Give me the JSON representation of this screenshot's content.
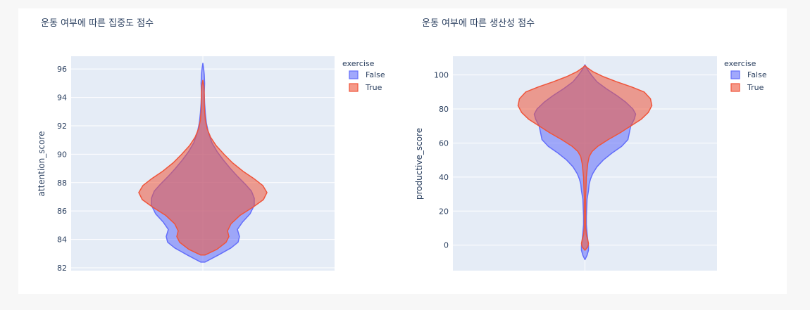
{
  "chart_data": [
    {
      "type": "violin",
      "title": "운동 여부에 따른 집중도 점수",
      "xlabel": "",
      "ylabel": "attention_score",
      "ylim": [
        81.8,
        96.9
      ],
      "yticks": [
        82,
        84,
        86,
        88,
        90,
        92,
        94,
        96
      ],
      "legend": {
        "title": "exercise",
        "placement": "top-right"
      },
      "series": [
        {
          "name": "False",
          "color": "#636efa",
          "density": [
            [
              82.4,
              0.03
            ],
            [
              82.9,
              0.22
            ],
            [
              83.4,
              0.4
            ],
            [
              83.8,
              0.5
            ],
            [
              84.2,
              0.52
            ],
            [
              84.7,
              0.49
            ],
            [
              85.2,
              0.56
            ],
            [
              85.8,
              0.67
            ],
            [
              86.4,
              0.73
            ],
            [
              86.9,
              0.73
            ],
            [
              87.4,
              0.69
            ],
            [
              87.9,
              0.6
            ],
            [
              88.4,
              0.5
            ],
            [
              89.0,
              0.39
            ],
            [
              89.6,
              0.29
            ],
            [
              90.2,
              0.2
            ],
            [
              90.8,
              0.13
            ],
            [
              91.5,
              0.08
            ],
            [
              92.2,
              0.05
            ],
            [
              92.9,
              0.035
            ],
            [
              93.6,
              0.025
            ],
            [
              94.3,
              0.02
            ],
            [
              95.0,
              0.025
            ],
            [
              95.6,
              0.02
            ],
            [
              96.0,
              0.012
            ],
            [
              96.4,
              0.0
            ]
          ]
        },
        {
          "name": "True",
          "color": "#ef553b",
          "density": [
            [
              82.9,
              0.03
            ],
            [
              83.3,
              0.2
            ],
            [
              83.8,
              0.33
            ],
            [
              84.2,
              0.37
            ],
            [
              84.6,
              0.35
            ],
            [
              85.1,
              0.4
            ],
            [
              85.7,
              0.53
            ],
            [
              86.3,
              0.72
            ],
            [
              86.8,
              0.86
            ],
            [
              87.3,
              0.91
            ],
            [
              87.8,
              0.85
            ],
            [
              88.3,
              0.72
            ],
            [
              88.8,
              0.57
            ],
            [
              89.4,
              0.42
            ],
            [
              90.0,
              0.3
            ],
            [
              90.6,
              0.19
            ],
            [
              91.2,
              0.11
            ],
            [
              91.8,
              0.06
            ],
            [
              92.4,
              0.035
            ],
            [
              93.0,
              0.025
            ],
            [
              93.6,
              0.02
            ],
            [
              94.2,
              0.02
            ],
            [
              94.8,
              0.015
            ],
            [
              95.2,
              0.0
            ]
          ]
        }
      ]
    },
    {
      "type": "violin",
      "title": "운동 여부에 따른 생산성 점수",
      "xlabel": "",
      "ylabel": "productive_score",
      "ylim": [
        -15,
        111
      ],
      "yticks": [
        0,
        20,
        40,
        60,
        80,
        100
      ],
      "legend": {
        "title": "exercise",
        "placement": "top-right"
      },
      "series": [
        {
          "name": "False",
          "color": "#636efa",
          "density": [
            [
              -8.5,
              0.0
            ],
            [
              -6,
              0.03
            ],
            [
              -3,
              0.05
            ],
            [
              0,
              0.05
            ],
            [
              3,
              0.04
            ],
            [
              7,
              0.03
            ],
            [
              12,
              0.02
            ],
            [
              17,
              0.02
            ],
            [
              22,
              0.025
            ],
            [
              27,
              0.03
            ],
            [
              32,
              0.05
            ],
            [
              36,
              0.06
            ],
            [
              39,
              0.08
            ],
            [
              42,
              0.11
            ],
            [
              46,
              0.17
            ],
            [
              50,
              0.26
            ],
            [
              54,
              0.38
            ],
            [
              58,
              0.52
            ],
            [
              62,
              0.61
            ],
            [
              66,
              0.63
            ],
            [
              70,
              0.65
            ],
            [
              74,
              0.7
            ],
            [
              77,
              0.72
            ],
            [
              80,
              0.68
            ],
            [
              84,
              0.58
            ],
            [
              88,
              0.45
            ],
            [
              92,
              0.3
            ],
            [
              96,
              0.17
            ],
            [
              100,
              0.09
            ],
            [
              103,
              0.04
            ],
            [
              106,
              0.0
            ]
          ]
        },
        {
          "name": "True",
          "color": "#ef553b",
          "density": [
            [
              -3,
              0.0
            ],
            [
              -1,
              0.04
            ],
            [
              1,
              0.05
            ],
            [
              3,
              0.04
            ],
            [
              6,
              0.02
            ],
            [
              10,
              0.01
            ],
            [
              16,
              0.01
            ],
            [
              22,
              0.01
            ],
            [
              28,
              0.01
            ],
            [
              34,
              0.015
            ],
            [
              40,
              0.02
            ],
            [
              44,
              0.03
            ],
            [
              48,
              0.04
            ],
            [
              52,
              0.06
            ],
            [
              55,
              0.1
            ],
            [
              58,
              0.18
            ],
            [
              62,
              0.33
            ],
            [
              66,
              0.5
            ],
            [
              70,
              0.65
            ],
            [
              74,
              0.8
            ],
            [
              78,
              0.9
            ],
            [
              82,
              0.95
            ],
            [
              86,
              0.93
            ],
            [
              90,
              0.84
            ],
            [
              93,
              0.66
            ],
            [
              96,
              0.45
            ],
            [
              99,
              0.26
            ],
            [
              102,
              0.11
            ],
            [
              104,
              0.04
            ],
            [
              105.5,
              0.0
            ]
          ]
        }
      ]
    }
  ]
}
